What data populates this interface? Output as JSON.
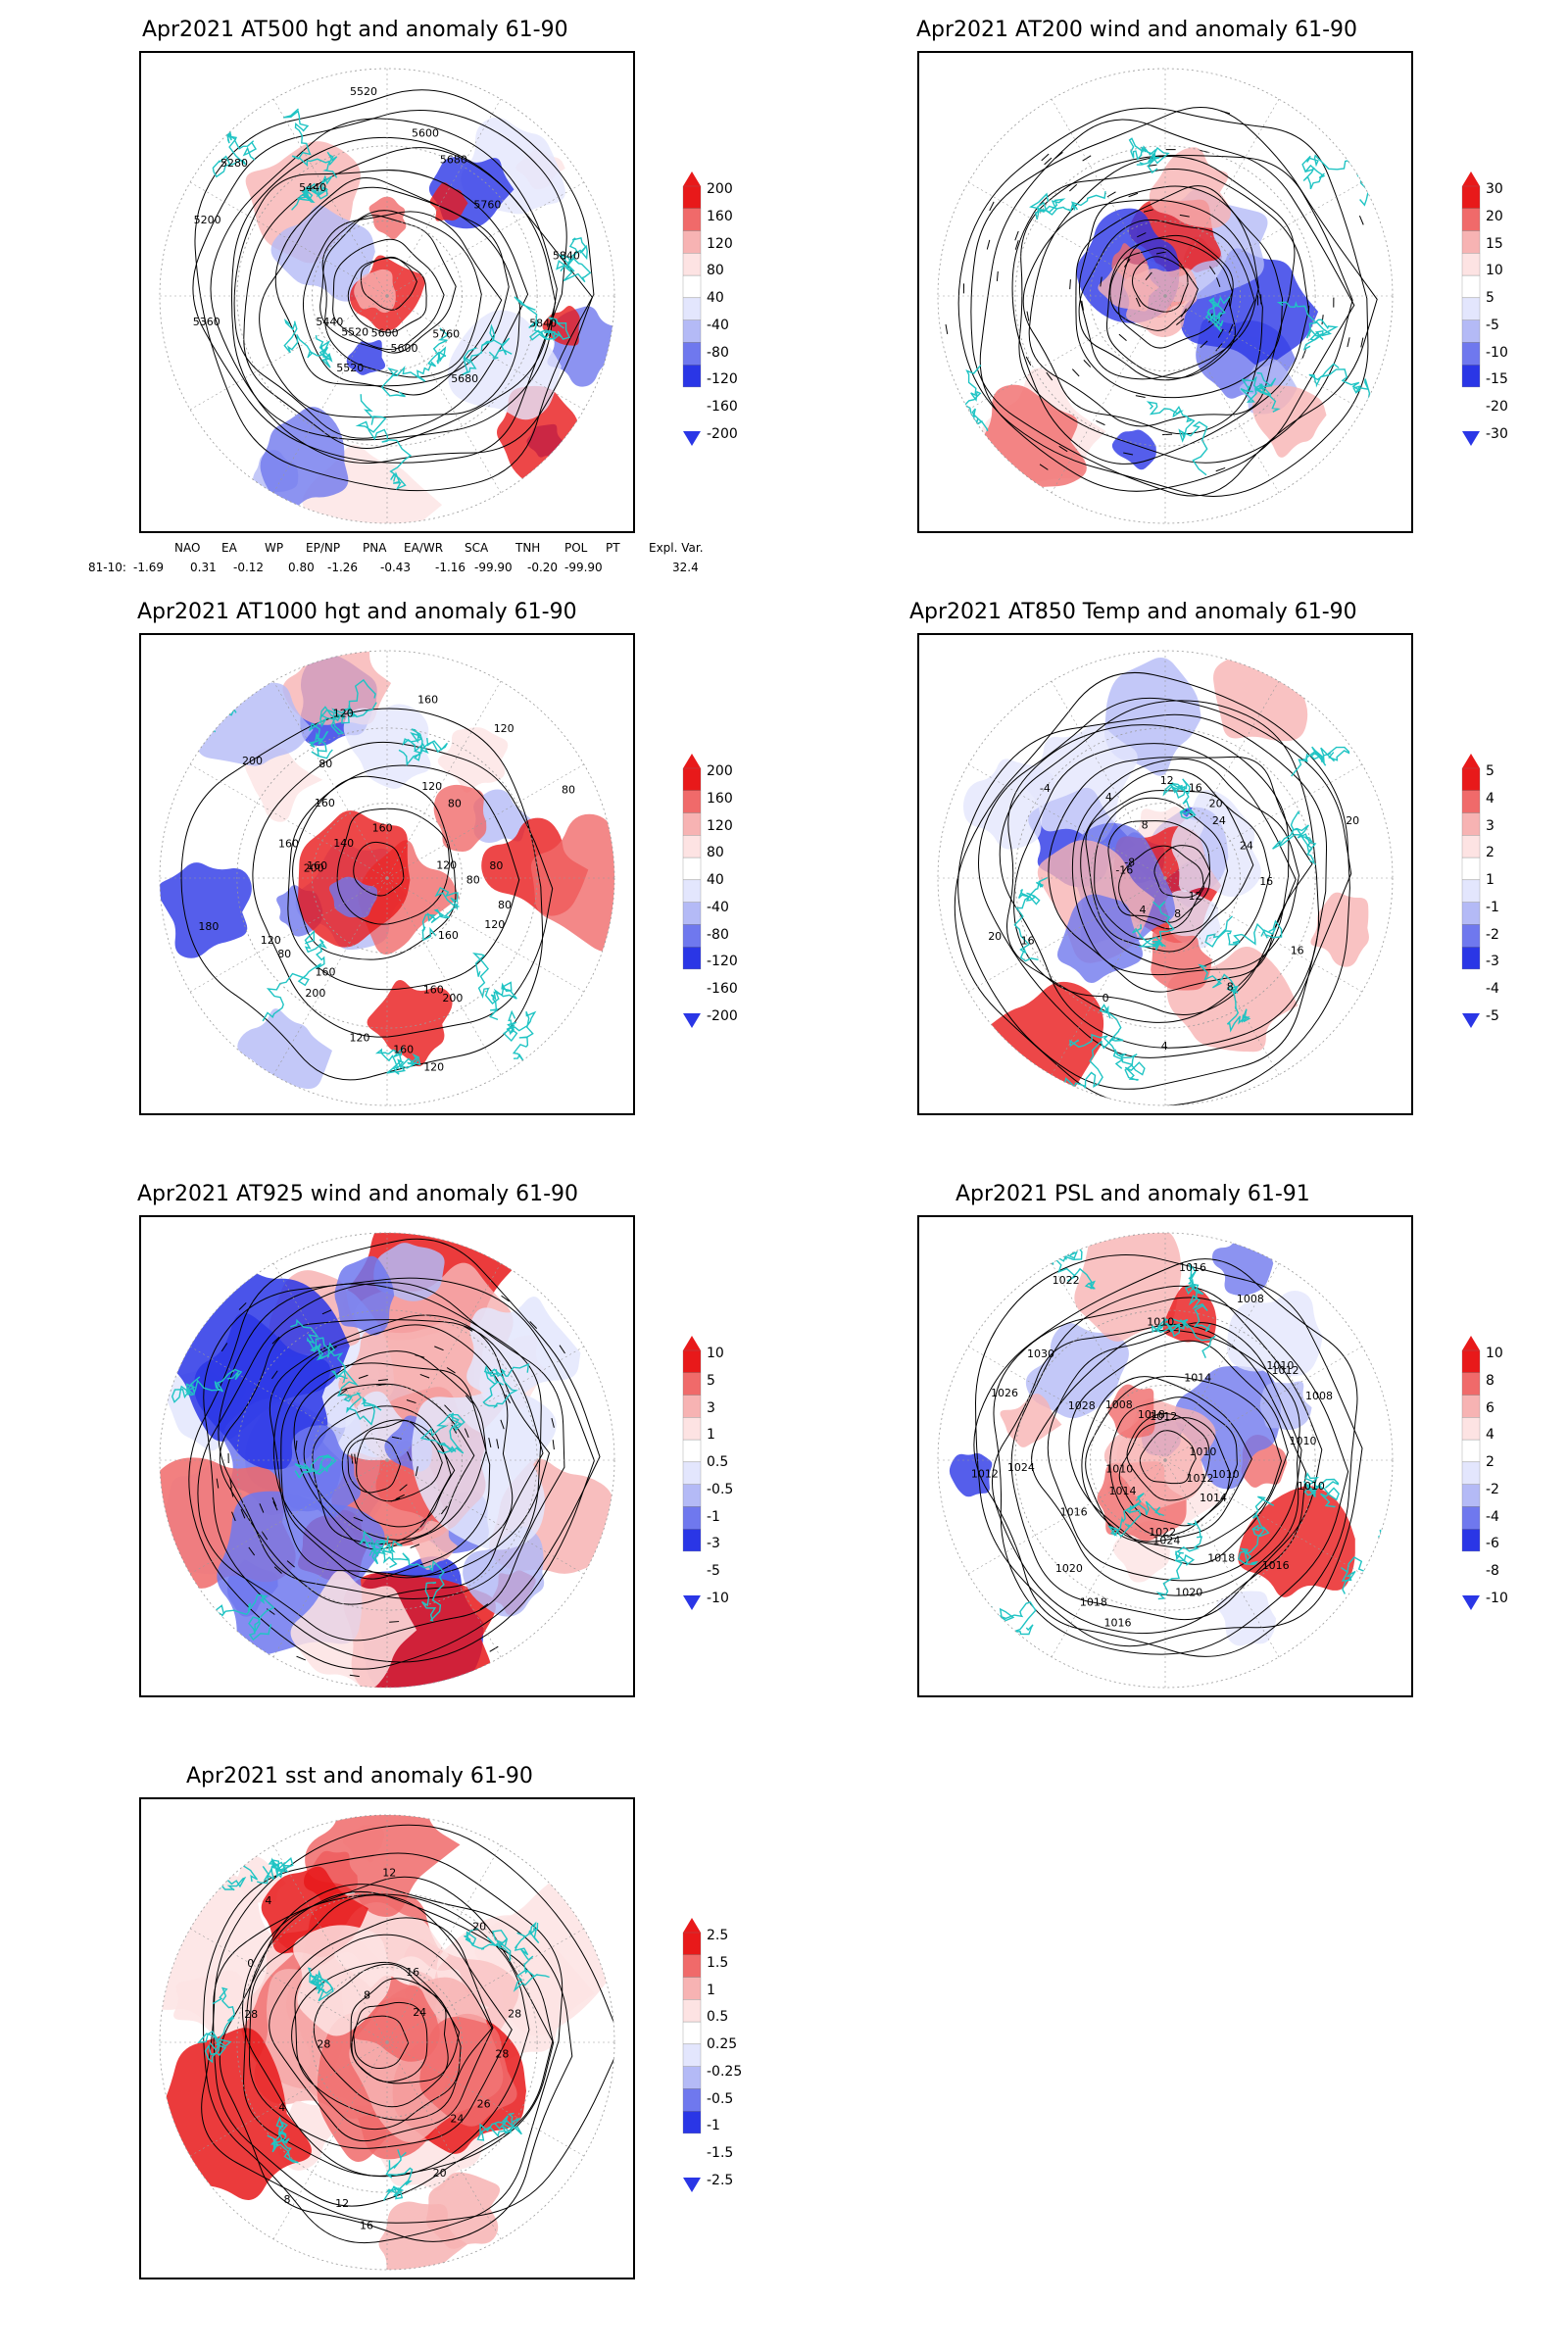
{
  "panels": [
    {
      "id": "p1",
      "title": "Apr2021 AT500 hgt and anomaly 61-90",
      "contour_labels": [
        "5840",
        "5760",
        "5680",
        "5600",
        "5600",
        "5520",
        "5520",
        "5440",
        "5360",
        "5200",
        "5280",
        "5440",
        "5520",
        "5600",
        "5680",
        "5760",
        "5840"
      ],
      "colorbar": [
        "200",
        "160",
        "120",
        "80",
        "40",
        "-40",
        "-80",
        "-120",
        "-160",
        "-200"
      ]
    },
    {
      "id": "p2",
      "title": "Apr2021 AT200 wind and anomaly 61-90",
      "contour_labels": [],
      "colorbar": [
        "30",
        "20",
        "15",
        "10",
        "5",
        "-5",
        "-10",
        "-15",
        "-20",
        "-30"
      ]
    },
    {
      "id": "p3",
      "title": "Apr2021 AT1000 hgt and anomaly 61-90",
      "contour_labels": [
        "80",
        "80",
        "120",
        "160",
        "200",
        "160",
        "120",
        "160",
        "120",
        "200",
        "160",
        "80",
        "120",
        "180",
        "200",
        "160",
        "160",
        "140",
        "200",
        "160",
        "80",
        "120",
        "160",
        "160",
        "120",
        "120",
        "80",
        "80",
        "120",
        "80"
      ],
      "colorbar": [
        "200",
        "160",
        "120",
        "80",
        "40",
        "-40",
        "-80",
        "-120",
        "-160",
        "-200"
      ]
    },
    {
      "id": "p4",
      "title": "Apr2021 AT850 Temp and anomaly 61-90",
      "contour_labels": [
        "16",
        "16",
        "12",
        "8",
        "8",
        "4",
        "0",
        "4",
        "16",
        "20",
        "-16",
        "-8",
        "-4",
        "4",
        "8",
        "12",
        "16",
        "20",
        "24",
        "24",
        "20"
      ],
      "colorbar": [
        "5",
        "4",
        "3",
        "2",
        "1",
        "-1",
        "-2",
        "-3",
        "-4",
        "-5"
      ]
    },
    {
      "id": "p5",
      "title": "Apr2021 AT925 wind and anomaly 61-90",
      "contour_labels": [],
      "colorbar": [
        "10",
        "5",
        "3",
        "1",
        "0.5",
        "-0.5",
        "-1",
        "-3",
        "-5",
        "-10"
      ]
    },
    {
      "id": "p6",
      "title": "Apr2021 PSL and anomaly 61-91",
      "contour_labels": [
        "1010",
        "1010",
        "1012",
        "1014",
        "1016",
        "1018",
        "1020",
        "1024",
        "1022",
        "1016",
        "1018",
        "1020",
        "1014",
        "1016",
        "1010",
        "1012",
        "1024",
        "1026",
        "1028",
        "1030",
        "1008",
        "1022",
        "1018",
        "1010",
        "1012",
        "1016",
        "1014",
        "1008",
        "1010",
        "1012",
        "1008",
        "1010",
        "1010"
      ],
      "colorbar": [
        "10",
        "8",
        "6",
        "4",
        "2",
        "-2",
        "-4",
        "-6",
        "-8",
        "-10"
      ]
    },
    {
      "id": "p7",
      "title": "Apr2021 sst and anomaly 61-90",
      "contour_labels": [
        "28",
        "26",
        "24",
        "20",
        "16",
        "12",
        "8",
        "4",
        "28",
        "28",
        "0",
        "4",
        "8",
        "12",
        "16",
        "20",
        "24",
        "28"
      ],
      "colorbar": [
        "2.5",
        "1.5",
        "1",
        "0.5",
        "0.25",
        "-0.25",
        "-0.5",
        "-1",
        "-1.5",
        "-2.5"
      ]
    }
  ],
  "teleconnection": {
    "headers": [
      "NAO",
      "EA",
      "WP",
      "EP/NP",
      "PNA",
      "EA/WR",
      "SCA",
      "TNH",
      "POL",
      "PT",
      "Expl. Var."
    ],
    "row_label": "81-10:",
    "values": [
      "-1.69",
      "0.31",
      "-0.12",
      "0.80",
      "-1.26",
      "-0.43",
      "-1.16",
      "-99.90",
      "-0.20",
      "-99.90",
      "32.4"
    ]
  },
  "colors": {
    "anomaly_pos_strong": "#e8191a",
    "anomaly_pos_mid": "#f06a6a",
    "anomaly_pos_light": "#f7b3b3",
    "anomaly_pos_faint": "#fde3e3",
    "anomaly_neg_faint": "#e3e6fd",
    "anomaly_neg_light": "#b4baf6",
    "anomaly_neg_mid": "#6f78ee",
    "anomaly_neg_strong": "#2a36e6",
    "coastline": "#20c4c4",
    "contour": "#000000"
  }
}
